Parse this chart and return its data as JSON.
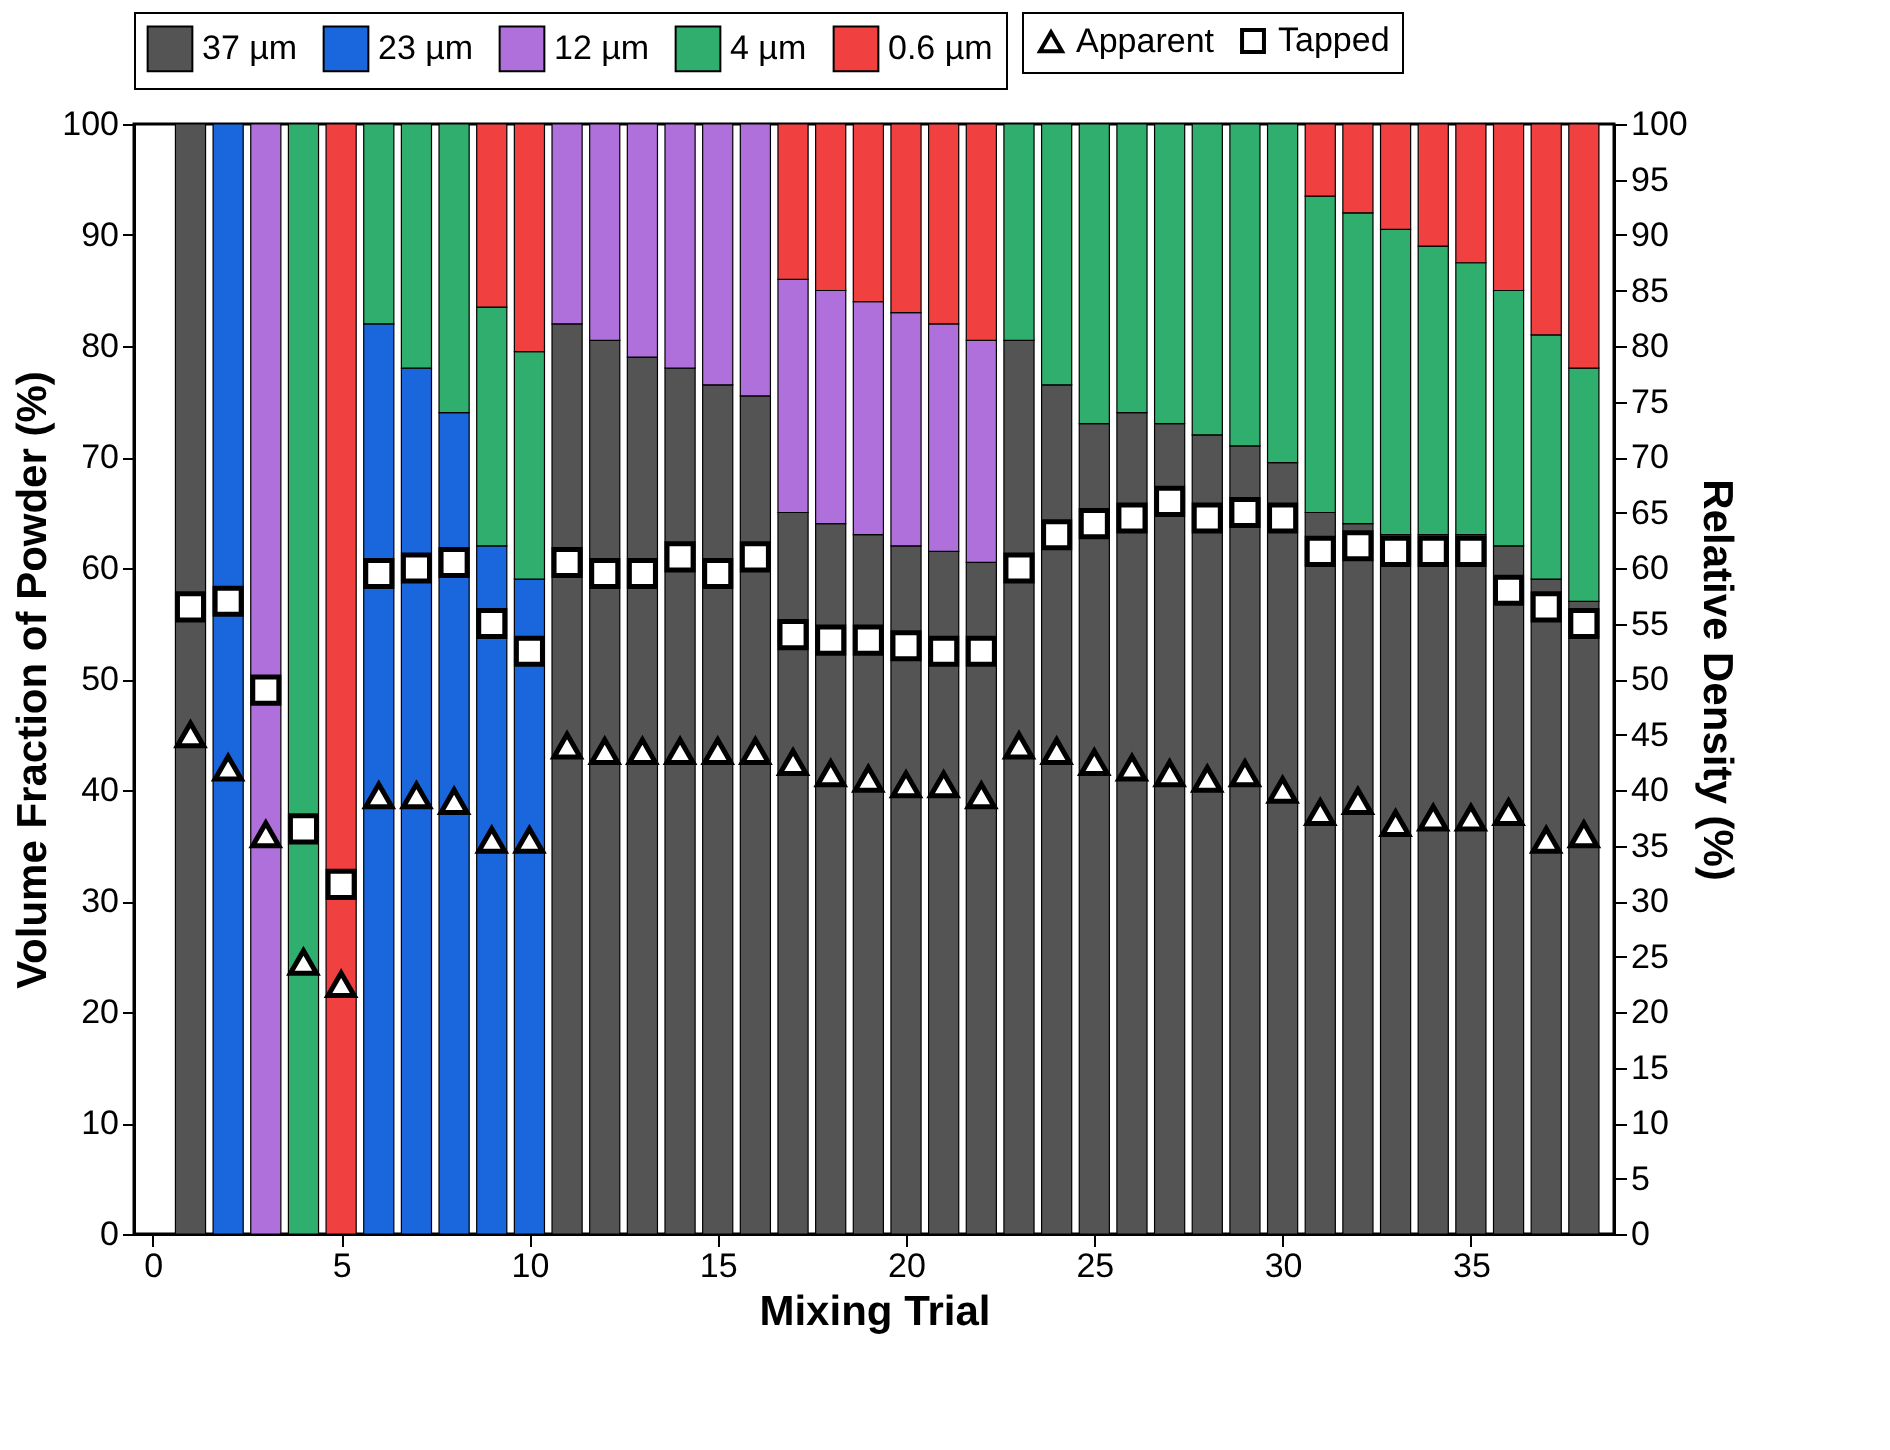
{
  "chart_data": {
    "type": "bar",
    "stacked": true,
    "xlabel": "Mixing Trial",
    "ylabel": "Volume Fraction of Powder (%)",
    "y2label": "Relative Density (%)",
    "x": [
      1,
      2,
      3,
      4,
      5,
      6,
      7,
      8,
      9,
      10,
      11,
      12,
      13,
      14,
      15,
      16,
      17,
      18,
      19,
      20,
      21,
      22,
      23,
      24,
      25,
      26,
      27,
      28,
      29,
      30,
      31,
      32,
      33,
      34,
      35,
      36,
      37,
      38
    ],
    "xlim": [
      -0.5,
      38.8
    ],
    "xticks": [
      0,
      5,
      10,
      15,
      20,
      25,
      30,
      35
    ],
    "ylim": [
      0,
      100
    ],
    "yticks": [
      0,
      10,
      20,
      30,
      40,
      50,
      60,
      70,
      80,
      90,
      100
    ],
    "y2lim": [
      0,
      100
    ],
    "y2ticks": [
      0,
      5,
      10,
      15,
      20,
      25,
      30,
      35,
      40,
      45,
      50,
      55,
      60,
      65,
      70,
      75,
      80,
      85,
      90,
      95,
      100
    ],
    "grid": false,
    "legend": "top",
    "series": [
      {
        "name": "37 µm",
        "color": "#545454",
        "values": [
          100,
          0,
          0,
          0,
          0,
          0,
          0,
          0,
          0,
          0,
          82,
          80.5,
          79,
          78,
          76.5,
          75.5,
          65,
          64,
          63,
          62,
          61.5,
          60.5,
          80.5,
          76.5,
          73,
          74,
          73,
          72,
          71,
          69.5,
          65,
          64,
          63,
          63,
          63,
          62,
          59,
          57
        ]
      },
      {
        "name": "23 µm",
        "color": "#1a66dc",
        "values": [
          0,
          100,
          0,
          0,
          0,
          82,
          78,
          74,
          62,
          59,
          0,
          0,
          0,
          0,
          0,
          0,
          0,
          0,
          0,
          0,
          0,
          0,
          0,
          0,
          0,
          0,
          0,
          0,
          0,
          0,
          0,
          0,
          0,
          0,
          0,
          0,
          0,
          0
        ]
      },
      {
        "name": "12 µm",
        "color": "#b070dc",
        "values": [
          0,
          0,
          100,
          0,
          0,
          0,
          0,
          0,
          0,
          0,
          18,
          19.5,
          21,
          22,
          23.5,
          24.5,
          21,
          21,
          21,
          21,
          20.5,
          20,
          0,
          0,
          0,
          0,
          0,
          0,
          0,
          0,
          0,
          0,
          0,
          0,
          0,
          0,
          0,
          0
        ]
      },
      {
        "name": "4 µm",
        "color": "#2fae6e",
        "values": [
          0,
          0,
          0,
          100,
          0,
          18,
          22,
          26,
          21.5,
          20.5,
          0,
          0,
          0,
          0,
          0,
          0,
          0,
          0,
          0,
          0,
          0,
          0,
          19.5,
          23.5,
          27,
          26,
          27,
          28,
          29,
          30.5,
          28.5,
          28,
          27.5,
          26,
          24.5,
          23,
          22,
          21
        ]
      },
      {
        "name": "0.6 µm",
        "color": "#f04040",
        "values": [
          0,
          0,
          0,
          0,
          100,
          0,
          0,
          0,
          16.5,
          20.5,
          0,
          0,
          0,
          0,
          0,
          0,
          14,
          15,
          16,
          17,
          18,
          19.5,
          0,
          0,
          0,
          0,
          0,
          0,
          0,
          0,
          6.5,
          8,
          9.5,
          11,
          12.5,
          15,
          19,
          22
        ]
      },
      {
        "name": "Apparent",
        "type": "scatter",
        "axis": "y2",
        "marker": "triangle",
        "color": "#ffffff",
        "values": [
          45,
          42,
          36,
          24.5,
          22.5,
          39.5,
          39.5,
          39,
          35.5,
          35.5,
          44,
          43.5,
          43.5,
          43.5,
          43.5,
          43.5,
          42.5,
          41.5,
          41,
          40.5,
          40.5,
          39.5,
          44,
          43.5,
          42.5,
          42,
          41.5,
          41,
          41.5,
          40,
          38,
          39,
          37,
          37.5,
          37.5,
          38,
          35.5,
          36
        ]
      },
      {
        "name": "Tapped",
        "type": "scatter",
        "axis": "y2",
        "marker": "square",
        "color": "#ffffff",
        "values": [
          56.5,
          57,
          49,
          36.5,
          31.5,
          59.5,
          60,
          60.5,
          55,
          52.5,
          60.5,
          59.5,
          59.5,
          61,
          59.5,
          61,
          54,
          53.5,
          53.5,
          53,
          52.5,
          52.5,
          60,
          63,
          64,
          64.5,
          66,
          64.5,
          65,
          64.5,
          61.5,
          62,
          61.5,
          61.5,
          61.5,
          58,
          56.5,
          55
        ]
      }
    ]
  }
}
